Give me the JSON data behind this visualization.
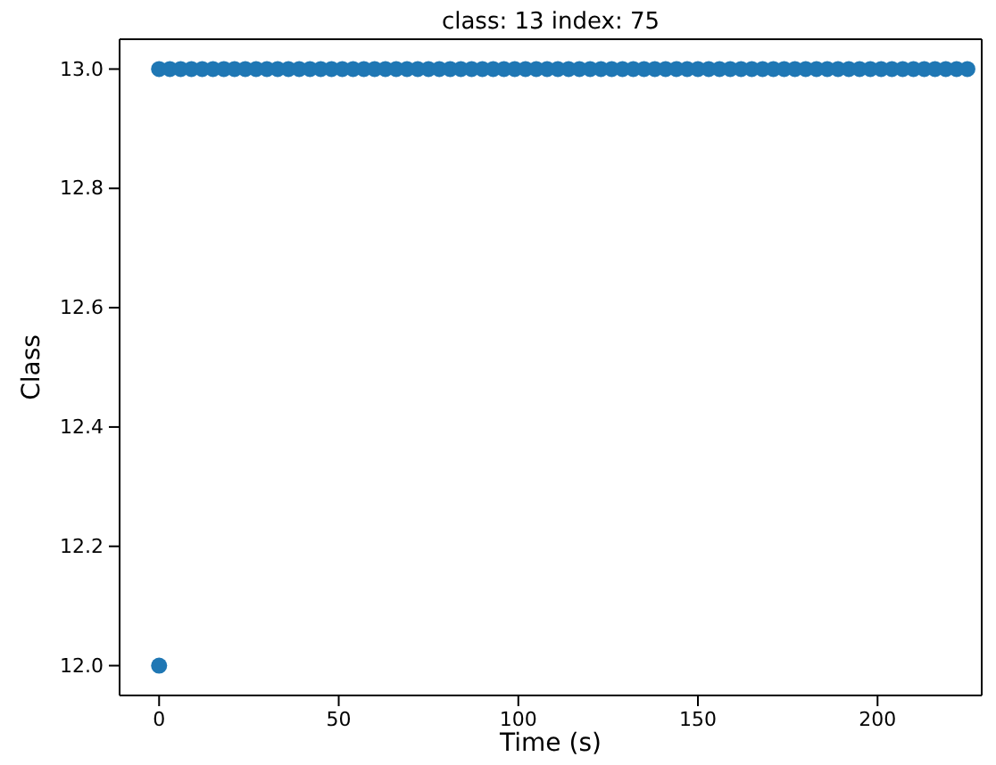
{
  "chart_data": {
    "type": "scatter",
    "title": "class: 13 index: 75",
    "xlabel": "Time (s)",
    "ylabel": "Class",
    "x": [
      0,
      0,
      3,
      6,
      9,
      12,
      15,
      18,
      21,
      24,
      27,
      30,
      33,
      36,
      39,
      42,
      45,
      48,
      51,
      54,
      57,
      60,
      63,
      66,
      69,
      72,
      75,
      78,
      81,
      84,
      87,
      90,
      93,
      96,
      99,
      102,
      105,
      108,
      111,
      114,
      117,
      120,
      123,
      126,
      129,
      132,
      135,
      138,
      141,
      144,
      147,
      150,
      153,
      156,
      159,
      162,
      165,
      168,
      171,
      174,
      177,
      180,
      183,
      186,
      189,
      192,
      195,
      198,
      201,
      204,
      207,
      210,
      213,
      216,
      219,
      222,
      225
    ],
    "series": [
      {
        "color": "#1f77b4",
        "values": [
          12,
          13,
          13,
          13,
          13,
          13,
          13,
          13,
          13,
          13,
          13,
          13,
          13,
          13,
          13,
          13,
          13,
          13,
          13,
          13,
          13,
          13,
          13,
          13,
          13,
          13,
          13,
          13,
          13,
          13,
          13,
          13,
          13,
          13,
          13,
          13,
          13,
          13,
          13,
          13,
          13,
          13,
          13,
          13,
          13,
          13,
          13,
          13,
          13,
          13,
          13,
          13,
          13,
          13,
          13,
          13,
          13,
          13,
          13,
          13,
          13,
          13,
          13,
          13,
          13,
          13,
          13,
          13,
          13,
          13,
          13,
          13,
          13,
          13,
          13,
          13,
          13
        ]
      }
    ],
    "xlim": [
      -11,
      229
    ],
    "xticks": [
      0,
      50,
      100,
      150,
      200
    ],
    "ylim": [
      11.95,
      13.05
    ],
    "yticks": [
      {
        "value": 12,
        "label": "12.0"
      },
      {
        "value": 12.2,
        "label": "12.2"
      },
      {
        "value": 12.4,
        "label": "12.4"
      },
      {
        "value": 12.6,
        "label": "12.6"
      },
      {
        "value": 12.8,
        "label": "12.8"
      },
      {
        "value": 13,
        "label": "13.0"
      }
    ],
    "marker": "circle",
    "grid": false
  }
}
